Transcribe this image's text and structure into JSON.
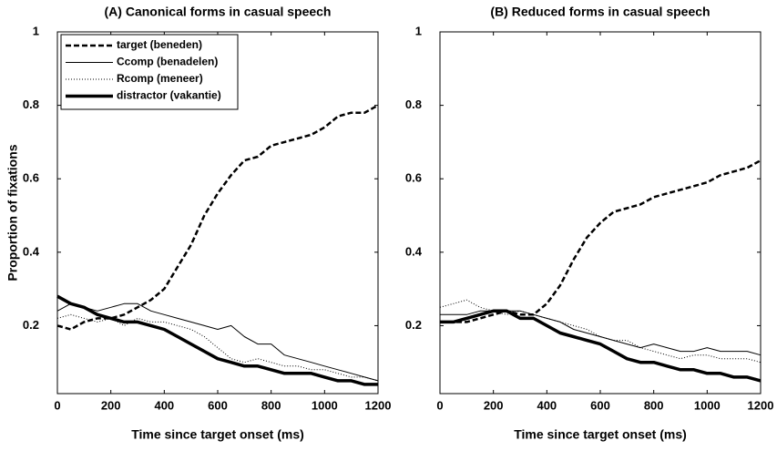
{
  "chart_data": [
    {
      "type": "line",
      "title": "(A) Canonical forms in casual speech",
      "xlabel": "Time since target onset (ms)",
      "ylabel": "Proportion of fixations",
      "x": [
        0,
        50,
        100,
        150,
        200,
        250,
        300,
        350,
        400,
        450,
        500,
        550,
        600,
        650,
        700,
        750,
        800,
        850,
        900,
        950,
        1000,
        1050,
        1100,
        1150,
        1200
      ],
      "xlim": [
        0,
        1200
      ],
      "xticks": [
        0,
        200,
        400,
        600,
        800,
        1000,
        1200
      ],
      "ylim": [
        0.015,
        1
      ],
      "yticks": [
        0.2,
        0.4,
        0.6,
        0.8,
        1
      ],
      "legend": "upper left",
      "series": [
        {
          "name": "target (beneden)",
          "color": "#000000",
          "style": "dashed",
          "width": 2.5,
          "values": [
            0.2,
            0.19,
            0.21,
            0.22,
            0.22,
            0.23,
            0.25,
            0.27,
            0.3,
            0.36,
            0.42,
            0.5,
            0.56,
            0.61,
            0.65,
            0.66,
            0.69,
            0.7,
            0.71,
            0.72,
            0.74,
            0.77,
            0.78,
            0.78,
            0.8
          ]
        },
        {
          "name": "Ccomp (benadelen)",
          "color": "#000000",
          "style": "solid",
          "width": 1,
          "values": [
            0.24,
            0.26,
            0.25,
            0.24,
            0.25,
            0.26,
            0.26,
            0.24,
            0.23,
            0.22,
            0.21,
            0.2,
            0.19,
            0.2,
            0.17,
            0.15,
            0.15,
            0.12,
            0.11,
            0.1,
            0.09,
            0.08,
            0.07,
            0.06,
            0.05
          ]
        },
        {
          "name": "Rcomp (meneer)",
          "color": "#000000",
          "style": "dotted",
          "width": 1,
          "values": [
            0.22,
            0.23,
            0.22,
            0.21,
            0.22,
            0.2,
            0.22,
            0.21,
            0.21,
            0.2,
            0.19,
            0.17,
            0.14,
            0.11,
            0.1,
            0.11,
            0.1,
            0.09,
            0.09,
            0.08,
            0.08,
            0.07,
            0.06,
            0.06,
            0.05
          ]
        },
        {
          "name": "distractor (vakantie)",
          "color": "#000000",
          "style": "solid",
          "width": 3.5,
          "values": [
            0.28,
            0.26,
            0.25,
            0.23,
            0.22,
            0.21,
            0.21,
            0.2,
            0.19,
            0.17,
            0.15,
            0.13,
            0.11,
            0.1,
            0.09,
            0.09,
            0.08,
            0.07,
            0.07,
            0.07,
            0.06,
            0.05,
            0.05,
            0.04,
            0.04
          ]
        }
      ]
    },
    {
      "type": "line",
      "title": "(B) Reduced forms in casual speech",
      "xlabel": "Time since target onset (ms)",
      "x": [
        0,
        50,
        100,
        150,
        200,
        250,
        300,
        350,
        400,
        450,
        500,
        550,
        600,
        650,
        700,
        750,
        800,
        850,
        900,
        950,
        1000,
        1050,
        1100,
        1150,
        1200
      ],
      "xlim": [
        0,
        1200
      ],
      "xticks": [
        0,
        200,
        400,
        600,
        800,
        1000,
        1200
      ],
      "ylim": [
        0.015,
        1
      ],
      "yticks": [
        0.2,
        0.4,
        0.6,
        0.8,
        1
      ],
      "series": [
        {
          "color": "#000000",
          "style": "dashed",
          "width": 2.5,
          "values": [
            0.21,
            0.21,
            0.21,
            0.22,
            0.23,
            0.24,
            0.23,
            0.23,
            0.26,
            0.31,
            0.38,
            0.44,
            0.48,
            0.51,
            0.52,
            0.53,
            0.55,
            0.56,
            0.57,
            0.58,
            0.59,
            0.61,
            0.62,
            0.63,
            0.65
          ]
        },
        {
          "color": "#000000",
          "style": "solid",
          "width": 1,
          "values": [
            0.23,
            0.23,
            0.23,
            0.24,
            0.24,
            0.24,
            0.24,
            0.23,
            0.22,
            0.21,
            0.19,
            0.18,
            0.17,
            0.16,
            0.15,
            0.14,
            0.15,
            0.14,
            0.13,
            0.13,
            0.14,
            0.13,
            0.13,
            0.13,
            0.12
          ]
        },
        {
          "color": "#000000",
          "style": "dotted",
          "width": 1,
          "values": [
            0.25,
            0.26,
            0.27,
            0.25,
            0.24,
            0.23,
            0.24,
            0.23,
            0.22,
            0.21,
            0.2,
            0.19,
            0.17,
            0.16,
            0.16,
            0.14,
            0.13,
            0.12,
            0.11,
            0.12,
            0.12,
            0.11,
            0.11,
            0.11,
            0.1
          ]
        },
        {
          "color": "#000000",
          "style": "solid",
          "width": 3.5,
          "values": [
            0.21,
            0.21,
            0.22,
            0.23,
            0.24,
            0.24,
            0.22,
            0.22,
            0.2,
            0.18,
            0.17,
            0.16,
            0.15,
            0.13,
            0.11,
            0.1,
            0.1,
            0.09,
            0.08,
            0.08,
            0.07,
            0.07,
            0.06,
            0.06,
            0.05
          ]
        }
      ]
    }
  ]
}
